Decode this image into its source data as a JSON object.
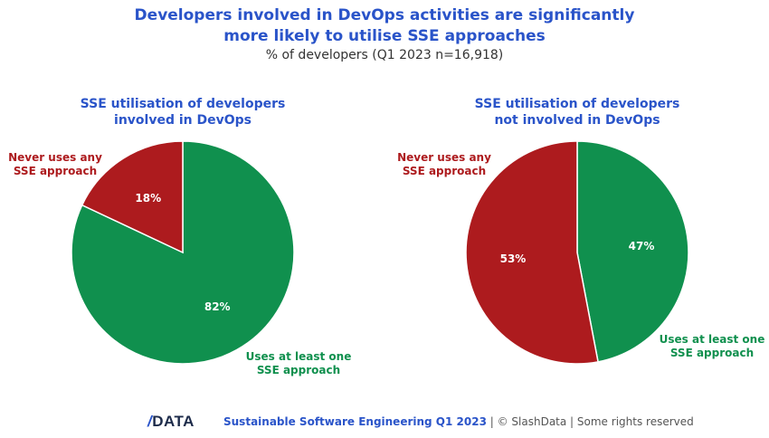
{
  "title_line1": "Developers involved in DevOps activities are significantly",
  "title_line2": "more likely to utilise SSE approaches",
  "subtitle": "% of developers (Q1 2023 n=16,918)",
  "colors": {
    "never": "#ad1b1e",
    "uses": "#10904e",
    "title": "#2a54c9"
  },
  "chart_data": [
    {
      "type": "pie",
      "title_line1": "SSE utilisation of developers",
      "title_line2": "involved in DevOps",
      "slices": [
        {
          "label_line1": "Never uses any",
          "label_line2": "SSE approach",
          "value": 18,
          "value_label": "18%"
        },
        {
          "label_line1": "Uses at least one",
          "label_line2": "SSE approach",
          "value": 82,
          "value_label": "82%"
        }
      ]
    },
    {
      "type": "pie",
      "title_line1": "SSE utilisation of developers",
      "title_line2": "not involved in DevOps",
      "slices": [
        {
          "label_line1": "Never uses any",
          "label_line2": "SSE approach",
          "value": 53,
          "value_label": "53%"
        },
        {
          "label_line1": "Uses at least one",
          "label_line2": "SSE approach",
          "value": 47,
          "value_label": "47%"
        }
      ]
    }
  ],
  "footer": {
    "logo_slash": "/",
    "logo_text": "DATA",
    "report": "Sustainable Software Engineering Q1 2023",
    "rest": " | © SlashData | Some rights reserved"
  }
}
